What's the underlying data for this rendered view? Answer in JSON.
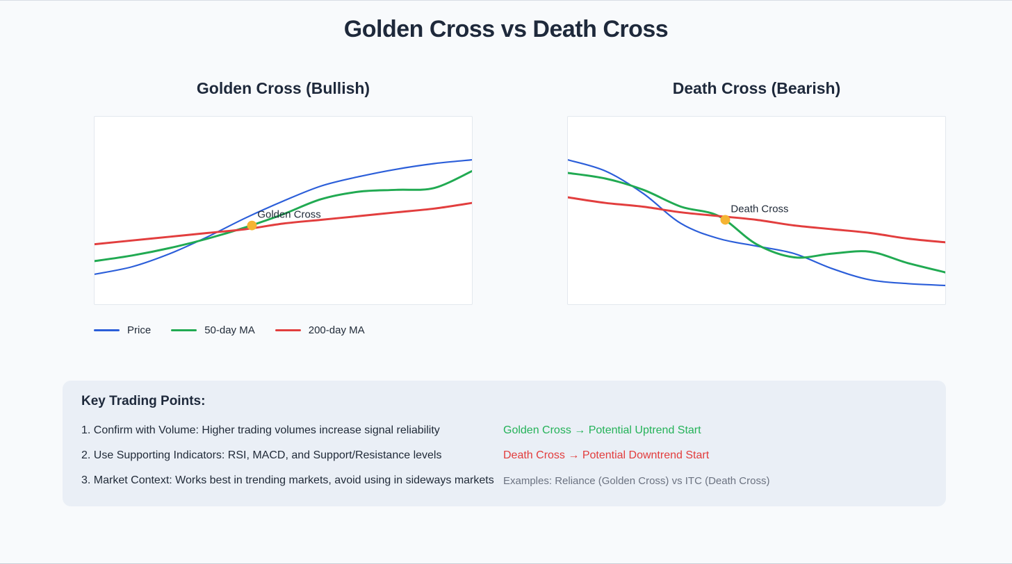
{
  "page": {
    "title": "Golden Cross vs Death Cross",
    "background": "#f8fafc",
    "title_color": "#1e293b",
    "panel_background": "#ffffff",
    "panel_border_color": "#e3e8ee",
    "keybox_background": "#eaeff6"
  },
  "chart_data": [
    {
      "type": "line",
      "title": "Golden Cross (Bullish)",
      "xlabel": "",
      "ylabel": "",
      "x": [
        0,
        1,
        2,
        3,
        4,
        5,
        6,
        7,
        8,
        9,
        10
      ],
      "ylim": [
        0,
        100
      ],
      "grid": false,
      "axes_hidden": true,
      "legend_position": "below-left",
      "series": [
        {
          "name": "Price",
          "color": "#2b5ed9",
          "values": [
            16,
            20,
            27,
            36,
            46,
            55,
            63,
            68,
            72,
            75,
            77
          ]
        },
        {
          "name": "50-day MA",
          "color": "#21aa52",
          "values": [
            23,
            26,
            30,
            35,
            41,
            48,
            56,
            60,
            61,
            62,
            71
          ]
        },
        {
          "name": "200-day MA",
          "color": "#e23e3e",
          "values": [
            32,
            34,
            36,
            38,
            40,
            43,
            45,
            47,
            49,
            51,
            54
          ]
        }
      ],
      "annotation": {
        "label": "Golden Cross",
        "x": 4.17,
        "value": 42,
        "marker_color": "#f5b433"
      }
    },
    {
      "type": "line",
      "title": "Death Cross (Bearish)",
      "xlabel": "",
      "ylabel": "",
      "x": [
        0,
        1,
        2,
        3,
        4,
        5,
        6,
        7,
        8,
        9,
        10
      ],
      "ylim": [
        0,
        100
      ],
      "grid": false,
      "axes_hidden": true,
      "legend_position": "none",
      "series": [
        {
          "name": "Price",
          "color": "#2b5ed9",
          "values": [
            77,
            71,
            59,
            43,
            35,
            31,
            27,
            19,
            13,
            11,
            10
          ]
        },
        {
          "name": "50-day MA",
          "color": "#21aa52",
          "values": [
            70,
            67,
            61,
            52,
            47,
            32,
            25,
            27,
            28,
            22,
            17
          ]
        },
        {
          "name": "200-day MA",
          "color": "#e23e3e",
          "values": [
            57,
            54,
            52,
            49,
            47,
            45,
            42,
            40,
            38,
            35,
            33
          ]
        }
      ],
      "annotation": {
        "label": "Death Cross",
        "x": 4.17,
        "value": 45,
        "marker_color": "#f5b433"
      }
    }
  ],
  "key_points": {
    "heading": "Key Trading Points:",
    "items": [
      "1. Confirm with Volume: Higher trading volumes increase signal reliability",
      "2. Use Supporting Indicators: RSI, MACD, and Support/Resistance levels",
      "3. Market Context: Works best in trending markets, avoid using in sideways markets"
    ],
    "signals": [
      {
        "text": "Golden Cross → Potential Uptrend Start",
        "color": "#24b258"
      },
      {
        "text": "Death Cross → Potential Downtrend Start",
        "color": "#e23c3c"
      }
    ],
    "examples": "Examples: Reliance (Golden Cross) vs ITC (Death Cross)",
    "examples_color": "#6b7280"
  }
}
